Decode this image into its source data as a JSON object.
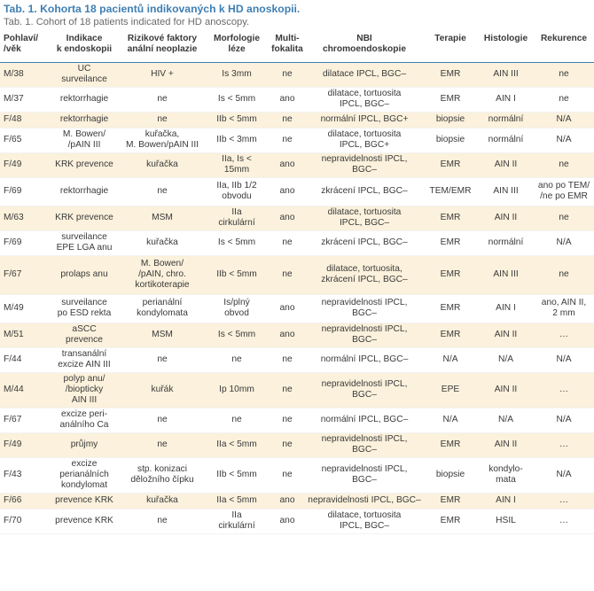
{
  "caption": {
    "title": "Tab. 1. Kohorta 18 pacientů indikovaných k HD anoskopii.",
    "subtitle": "Tab. 1. Cohort of 18 patients indicated for HD anoscopy."
  },
  "table": {
    "headers": [
      "Pohlaví/\n/věk",
      "Indikace\nk endoskopii",
      "Rizikové faktory\nanální neoplazie",
      "Morfologie\nléze",
      "Multi-\nfokalita",
      "NBI\nchromoendoskopie",
      "Terapie",
      "Histologie",
      "Rekurence"
    ],
    "rows": [
      [
        "M/38",
        "UC\nsurveilance",
        "HIV +",
        "Is 3mm",
        "ne",
        "dilatace IPCL, BGC–",
        "EMR",
        "AIN III",
        "ne"
      ],
      [
        "M/37",
        "rektorrhagie",
        "ne",
        "Is < 5mm",
        "ano",
        "dilatace, tortuosita\nIPCL, BGC–",
        "EMR",
        "AIN I",
        "ne"
      ],
      [
        "F/48",
        "rektorrhagie",
        "ne",
        "IIb < 5mm",
        "ne",
        "normální IPCL, BGC+",
        "biopsie",
        "normální",
        "N/A"
      ],
      [
        "F/65",
        "M. Bowen/\n/pAIN III",
        "kuřačka,\nM. Bowen/pAIN III",
        "IIb < 3mm",
        "ne",
        "dilatace, tortuosita\nIPCL, BGC+",
        "biopsie",
        "normální",
        "N/A"
      ],
      [
        "F/49",
        "KRK prevence",
        "kuřačka",
        "IIa, Is <\n15mm",
        "ano",
        "nepravidelnosti IPCL,\nBGC–",
        "EMR",
        "AIN II",
        "ne"
      ],
      [
        "F/69",
        "rektorrhagie",
        "ne",
        "IIa, IIb 1/2\nobvodu",
        "ano",
        "zkrácení IPCL, BGC–",
        "TEM/EMR",
        "AIN III",
        "ano po TEM/\n/ne po EMR"
      ],
      [
        "M/63",
        "KRK prevence",
        "MSM",
        "IIa\ncirkulární",
        "ano",
        "dilatace, tortuosita\nIPCL, BGC–",
        "EMR",
        "AIN II",
        "ne"
      ],
      [
        "F/69",
        "surveilance\nEPE LGA anu",
        "kuřačka",
        "Is < 5mm",
        "ne",
        "zkrácení IPCL, BGC–",
        "EMR",
        "normální",
        "N/A"
      ],
      [
        "F/67",
        "prolaps anu",
        "M. Bowen/\n/pAIN, chro.\nkortikoterapie",
        "IIb < 5mm",
        "ne",
        "dilatace, tortuosita,\nzkrácení IPCL, BGC–",
        "EMR",
        "AIN III",
        "ne"
      ],
      [
        "M/49",
        "surveilance\npo ESD rekta",
        "perianální\nkondylomata",
        "Is/plný\nobvod",
        "ano",
        "nepravidelnosti IPCL,\nBGC–",
        "EMR",
        "AIN I",
        "ano, AIN II,\n2 mm"
      ],
      [
        "M/51",
        "aSCC\nprevence",
        "MSM",
        "Is < 5mm",
        "ano",
        "nepravidelnosti IPCL,\nBGC–",
        "EMR",
        "AIN II",
        "…"
      ],
      [
        "F/44",
        "transanální\nexcize AIN III",
        "ne",
        "ne",
        "ne",
        "normální IPCL, BGC–",
        "N/A",
        "N/A",
        "N/A"
      ],
      [
        "M/44",
        "polyp anu/\n/biopticky\nAIN III",
        "kuřák",
        "Ip 10mm",
        "ne",
        "nepravidelnosti IPCL,\nBGC–",
        "EPE",
        "AIN II",
        "…"
      ],
      [
        "F/67",
        "excize peri-\nanálního Ca",
        "ne",
        "ne",
        "ne",
        "normální IPCL, BGC–",
        "N/A",
        "N/A",
        "N/A"
      ],
      [
        "F/49",
        "průjmy",
        "ne",
        "IIa < 5mm",
        "ne",
        "nepravidelnosti IPCL,\nBGC–",
        "EMR",
        "AIN II",
        "…"
      ],
      [
        "F/43",
        "excize\nperianálních\nkondylomat",
        "stp. konizaci\nděložního čípku",
        "IIb < 5mm",
        "ne",
        "nepravidelnosti IPCL,\nBGC–",
        "biopsie",
        "kondylo-\nmata",
        "N/A"
      ],
      [
        "F/66",
        "prevence KRK",
        "kuřačka",
        "IIa < 5mm",
        "ano",
        "nepravidelnosti IPCL, BGC–",
        "EMR",
        "AIN I",
        "…"
      ],
      [
        "F/70",
        "prevence KRK",
        "ne",
        "IIa\ncirkulární",
        "ano",
        "dilatace, tortuosita\nIPCL, BGC–",
        "EMR",
        "HSIL",
        "…"
      ]
    ]
  }
}
